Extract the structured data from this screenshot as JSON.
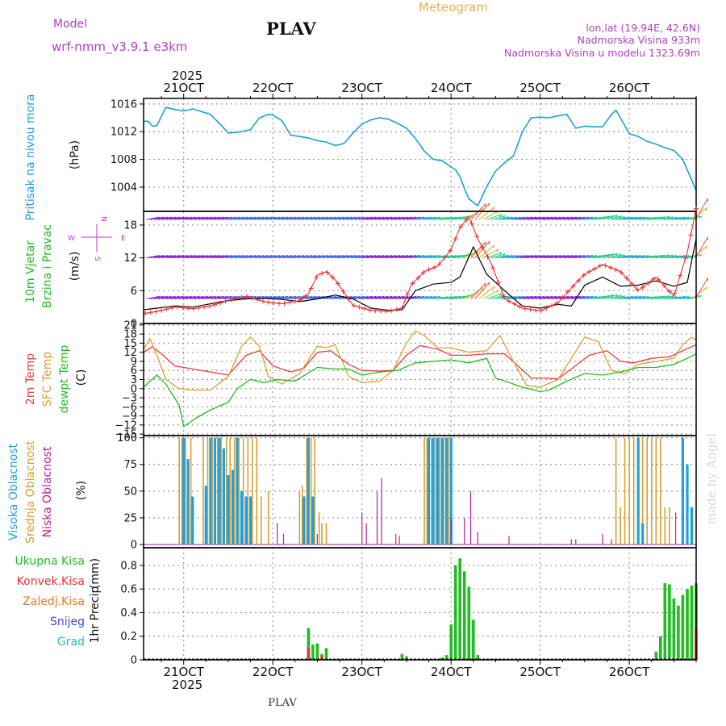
{
  "header": {
    "model_label": "Model",
    "model_name": "wrf-nmm_v3.9.1 e3km",
    "location": "PLAV",
    "product": "Meteogram",
    "lonlat": "lon,lat (19.94E, 42.6N)",
    "elevation": "Nadmorska Visina 933m",
    "model_elevation": "Nadmorska Visina u modelu 1323.69m",
    "footer_location": "PLAV",
    "watermark": "made by Angel",
    "year_top": "2025",
    "year_bottom": "2025"
  },
  "colors": {
    "pressure": "#1a9fe0",
    "wind_speed": "#000000",
    "wind_gust": "#ee3030",
    "temp2m": "#ee3b3b",
    "sfc_temp": "#d8a030",
    "dewpoint": "#22bb22",
    "cloud_high": "#1f9fe0",
    "cloud_mid": "#d8a030",
    "cloud_low": "#bb2299",
    "precip_total": "#22bb22",
    "precip_conv": "#ee3030",
    "precip_frozen": "#ee7722",
    "snow": "#4444dd",
    "graupel": "#22bbbb",
    "grid": "#999999",
    "violet": "#b040c0",
    "ylabel_pressure": "#1aa0e0"
  },
  "chart_data": [
    {
      "type": "line",
      "id": "pressure",
      "title": "Pritisak na nivou mora",
      "ylabel": "(hPa)",
      "ylim": [
        1000.5,
        1016.8
      ],
      "yticks": [
        1004,
        1008,
        1012,
        1016
      ],
      "xlim": [
        20.55,
        26.75
      ],
      "x_ticks": [
        21,
        22,
        23,
        24,
        25,
        26
      ],
      "x_tick_labels": [
        "21OCT",
        "22OCT",
        "23OCT",
        "24OCT",
        "25OCT",
        "26OCT"
      ],
      "series": [
        {
          "name": "MSLP",
          "x": [
            20.55,
            20.6,
            20.65,
            20.7,
            20.8,
            20.9,
            21.0,
            21.1,
            21.2,
            21.3,
            21.4,
            21.5,
            21.6,
            21.75,
            21.85,
            21.95,
            22.0,
            22.1,
            22.2,
            22.3,
            22.4,
            22.5,
            22.6,
            22.7,
            22.8,
            22.9,
            23.0,
            23.1,
            23.2,
            23.3,
            23.4,
            23.5,
            23.6,
            23.7,
            23.8,
            23.9,
            24.0,
            24.05,
            24.1,
            24.15,
            24.2,
            24.3,
            24.4,
            24.5,
            24.6,
            24.7,
            24.8,
            24.9,
            25.0,
            25.1,
            25.2,
            25.3,
            25.4,
            25.5,
            25.6,
            25.7,
            25.8,
            25.85,
            25.9,
            26.0,
            26.1,
            26.2,
            26.3,
            26.4,
            26.5,
            26.6,
            26.7,
            26.75
          ],
          "values": [
            1013.5,
            1013.5,
            1012.8,
            1012.9,
            1015.5,
            1015.2,
            1015.0,
            1015.3,
            1014.9,
            1014.5,
            1013.2,
            1011.8,
            1011.9,
            1012.3,
            1014.0,
            1014.5,
            1014.4,
            1013.6,
            1011.5,
            1011.3,
            1011.1,
            1010.7,
            1010.5,
            1010.0,
            1010.3,
            1011.8,
            1013.1,
            1013.7,
            1014.0,
            1013.8,
            1013.2,
            1012.5,
            1011.0,
            1009.2,
            1008.0,
            1007.8,
            1006.9,
            1006.5,
            1005.5,
            1003.8,
            1002.3,
            1001.3,
            1004.1,
            1006.3,
            1007.5,
            1008.5,
            1012.0,
            1014.0,
            1014.1,
            1014.0,
            1014.3,
            1014.5,
            1012.5,
            1012.8,
            1012.7,
            1012.7,
            1014.5,
            1015.1,
            1014.0,
            1011.7,
            1011.3,
            1010.6,
            1010.2,
            1009.7,
            1009.3,
            1008.0,
            1005.0,
            1003.5
          ]
        }
      ]
    },
    {
      "type": "line",
      "id": "wind",
      "title": "10m Vjetar",
      "subtitle": "Brzina i Pravac",
      "ylabel": "(m/s)",
      "compass": [
        "N",
        "W",
        "E",
        "S"
      ],
      "ylim": [
        0,
        20.5
      ],
      "yticks": [
        0,
        6,
        12,
        18
      ],
      "xlim": [
        20.55,
        26.75
      ],
      "arrow_rows": [
        4.5,
        12,
        19
      ],
      "series": [
        {
          "name": "wind speed",
          "x": [
            20.55,
            20.7,
            20.9,
            21.1,
            21.3,
            21.5,
            21.7,
            21.9,
            22.1,
            22.3,
            22.5,
            22.7,
            22.9,
            23.1,
            23.3,
            23.45,
            23.6,
            23.8,
            24.0,
            24.1,
            24.25,
            24.4,
            24.6,
            24.8,
            25.0,
            25.2,
            25.35,
            25.5,
            25.7,
            25.9,
            26.1,
            26.3,
            26.5,
            26.65,
            26.75
          ],
          "values": [
            2.5,
            2.8,
            3.2,
            3.0,
            3.6,
            4.2,
            4.5,
            4.6,
            4.4,
            4.0,
            4.5,
            5.2,
            4.5,
            2.8,
            2.4,
            2.5,
            6.0,
            7.2,
            7.5,
            8.5,
            14.0,
            9.0,
            6.0,
            3.2,
            2.8,
            3.5,
            3.2,
            7.0,
            8.5,
            6.8,
            7.0,
            7.8,
            6.8,
            7.5,
            15.5
          ]
        },
        {
          "name": "wind gust",
          "x": [
            20.55,
            20.7,
            20.9,
            21.1,
            21.3,
            21.5,
            21.7,
            21.9,
            22.1,
            22.3,
            22.4,
            22.5,
            22.6,
            22.7,
            22.9,
            23.1,
            23.3,
            23.45,
            23.55,
            23.7,
            23.85,
            24.0,
            24.1,
            24.2,
            24.3,
            24.45,
            24.6,
            24.8,
            25.0,
            25.2,
            25.35,
            25.5,
            25.7,
            25.9,
            26.1,
            26.3,
            26.5,
            26.65,
            26.75
          ],
          "values": [
            1.8,
            2.2,
            3.0,
            2.7,
            3.2,
            4.2,
            5.0,
            4.0,
            3.6,
            4.2,
            5.4,
            8.8,
            9.5,
            8.0,
            3.3,
            2.4,
            2.2,
            2.8,
            7.0,
            9.5,
            10.5,
            13.5,
            17.5,
            19.5,
            15.5,
            11.0,
            4.5,
            2.8,
            2.3,
            3.8,
            6.5,
            9.0,
            10.8,
            9.5,
            6.0,
            8.5,
            5.0,
            13.0,
            21.0
          ]
        }
      ]
    },
    {
      "type": "line",
      "id": "temperature",
      "title": "2m Temp",
      "subtitle": "SFC Temp",
      "subtitle2": "dewpt Temp",
      "ylabel": "(C)",
      "ylim": [
        -15.5,
        21.5
      ],
      "yticks": [
        -15,
        -12,
        -9,
        -6,
        -3,
        0,
        3,
        6,
        9,
        12,
        15,
        18,
        21
      ],
      "xlim": [
        20.55,
        26.75
      ],
      "series": [
        {
          "name": "2m Temp",
          "x": [
            20.55,
            20.65,
            20.75,
            20.9,
            21.1,
            21.3,
            21.5,
            21.7,
            21.85,
            22.0,
            22.2,
            22.35,
            22.5,
            22.65,
            22.85,
            23.0,
            23.2,
            23.35,
            23.5,
            23.65,
            23.85,
            24.0,
            24.2,
            24.4,
            24.6,
            24.75,
            24.9,
            25.05,
            25.2,
            25.35,
            25.55,
            25.75,
            25.9,
            26.05,
            26.25,
            26.45,
            26.6,
            26.75
          ],
          "values": [
            12.0,
            13.8,
            11.5,
            7.5,
            6.5,
            5.5,
            4.5,
            11.0,
            12.5,
            7.5,
            5.5,
            6.8,
            12.0,
            12.5,
            8.0,
            6.0,
            5.8,
            6.0,
            11.0,
            14.2,
            13.0,
            11.0,
            11.0,
            11.5,
            11.5,
            7.5,
            3.5,
            3.5,
            3.2,
            6.5,
            11.0,
            12.5,
            9.0,
            8.5,
            10.0,
            10.5,
            12.5,
            14.5
          ]
        },
        {
          "name": "SFC Temp",
          "x": [
            20.55,
            20.62,
            20.7,
            20.8,
            20.95,
            21.1,
            21.3,
            21.5,
            21.65,
            21.75,
            21.85,
            21.95,
            22.1,
            22.3,
            22.5,
            22.6,
            22.7,
            22.85,
            23.0,
            23.2,
            23.35,
            23.5,
            23.6,
            23.7,
            23.85,
            24.0,
            24.2,
            24.4,
            24.55,
            24.7,
            24.85,
            25.0,
            25.2,
            25.35,
            25.5,
            25.65,
            25.8,
            25.95,
            26.1,
            26.3,
            26.5,
            26.6,
            26.7,
            26.75
          ],
          "values": [
            13.0,
            16.5,
            11.0,
            3.0,
            0.0,
            -0.5,
            -0.5,
            4.0,
            14.0,
            17.0,
            14.0,
            4.0,
            1.5,
            5.0,
            14.0,
            13.5,
            14.5,
            4.0,
            2.0,
            2.5,
            6.0,
            15.0,
            19.0,
            17.5,
            13.5,
            13.5,
            12.0,
            12.5,
            17.5,
            9.0,
            1.0,
            0.5,
            3.0,
            10.0,
            17.0,
            15.5,
            6.0,
            5.0,
            8.0,
            9.0,
            10.0,
            14.5,
            17.0,
            16.0
          ]
        },
        {
          "name": "dewpt Temp",
          "x": [
            20.55,
            20.7,
            20.8,
            20.95,
            21.0,
            21.15,
            21.3,
            21.5,
            21.6,
            21.75,
            21.9,
            22.05,
            22.25,
            22.5,
            22.7,
            22.85,
            23.0,
            23.2,
            23.4,
            23.6,
            23.8,
            24.0,
            24.2,
            24.4,
            24.5,
            24.65,
            24.8,
            25.0,
            25.1,
            25.3,
            25.5,
            25.7,
            25.9,
            26.1,
            26.3,
            26.5,
            26.65,
            26.75
          ],
          "values": [
            0.5,
            4.5,
            1.5,
            -5.5,
            -12.5,
            -9.5,
            -7.0,
            -4.5,
            0.0,
            3.0,
            2.0,
            3.0,
            2.5,
            7.0,
            6.5,
            6.5,
            4.5,
            5.5,
            6.0,
            8.5,
            9.0,
            9.5,
            8.5,
            10.0,
            3.5,
            2.0,
            0.5,
            -1.0,
            -0.5,
            2.5,
            5.0,
            4.5,
            5.5,
            7.0,
            7.0,
            8.0,
            10.0,
            11.5
          ]
        }
      ]
    },
    {
      "type": "bar",
      "id": "clouds",
      "title": "Visoka Oblacnost",
      "subtitle": "Srednja Oblacnost",
      "subtitle2": "Niska Oblacnost",
      "ylabel": "(%)",
      "ylim": [
        -3,
        102
      ],
      "yticks": [
        0,
        25,
        50,
        75,
        100
      ],
      "xlim": [
        20.55,
        26.75
      ],
      "series": [
        {
          "name": "Visoka Oblacnost",
          "x": [
            21.0,
            21.05,
            21.1,
            21.25,
            21.3,
            21.35,
            21.4,
            21.45,
            21.5,
            21.55,
            21.6,
            21.65,
            21.7,
            21.75,
            22.35,
            22.4,
            22.45,
            23.75,
            23.8,
            23.85,
            23.9,
            23.95,
            24.0,
            26.1,
            26.15,
            26.6,
            26.65,
            26.7
          ],
          "values": [
            100,
            80,
            45,
            55,
            100,
            100,
            100,
            90,
            65,
            70,
            100,
            50,
            45,
            45,
            45,
            100,
            45,
            100,
            100,
            100,
            100,
            100,
            100,
            100,
            20,
            100,
            75,
            35
          ]
        },
        {
          "name": "Srednja Oblacnost",
          "x": [
            20.95,
            20.98,
            21.02,
            21.08,
            21.22,
            21.27,
            21.32,
            21.38,
            21.42,
            21.48,
            21.52,
            21.57,
            21.62,
            21.67,
            21.72,
            21.77,
            21.82,
            21.87,
            21.95,
            22.3,
            22.33,
            22.38,
            22.43,
            22.47,
            22.52,
            22.55,
            22.6,
            23.7,
            23.73,
            23.78,
            23.83,
            23.87,
            23.92,
            23.97,
            24.0,
            25.85,
            25.9,
            25.95,
            26.0,
            26.05,
            26.1,
            26.15,
            26.2,
            26.25,
            26.3,
            26.35,
            26.4,
            26.45
          ],
          "values": [
            100,
            100,
            100,
            100,
            100,
            100,
            100,
            100,
            100,
            100,
            100,
            100,
            100,
            100,
            100,
            100,
            100,
            45,
            50,
            50,
            55,
            100,
            100,
            100,
            30,
            20,
            20,
            100,
            100,
            100,
            100,
            100,
            100,
            100,
            100,
            100,
            35,
            100,
            100,
            100,
            100,
            100,
            100,
            100,
            100,
            100,
            35,
            35
          ]
        },
        {
          "name": "Niska Oblacnost",
          "x": [
            22.05,
            22.12,
            22.5,
            23.0,
            23.05,
            23.17,
            23.22,
            23.38,
            23.42,
            24.0,
            24.15,
            24.22,
            24.3,
            24.65,
            25.35,
            25.4,
            25.7,
            25.8,
            26.52
          ],
          "values": [
            20,
            10,
            10,
            30,
            20,
            50,
            62,
            10,
            8,
            25,
            25,
            50,
            12,
            8,
            5,
            5,
            10,
            5,
            30
          ]
        }
      ]
    },
    {
      "type": "bar",
      "id": "precip",
      "title": "1hr Precip",
      "ylabel": "(mm)",
      "legend": [
        "Ukupna Kisa",
        "Konvek.Kisa",
        "Zaledj.Kisa",
        "Snijeg",
        "Grad"
      ],
      "ylim": [
        0,
        0.95
      ],
      "yticks": [
        0,
        0.2,
        0.4,
        0.6,
        0.8
      ],
      "xlim": [
        20.55,
        26.75
      ],
      "series": [
        {
          "name": "Ukupna Kisa",
          "x": [
            22.4,
            22.45,
            22.5,
            22.55,
            22.6,
            23.45,
            23.5,
            23.9,
            23.95,
            24.0,
            24.05,
            24.1,
            24.15,
            24.2,
            24.25,
            24.3,
            26.3,
            26.35,
            26.4,
            26.45,
            26.5,
            26.55,
            26.6,
            26.65,
            26.7,
            26.75
          ],
          "values": [
            0.27,
            0.13,
            0.14,
            0.05,
            0.1,
            0.05,
            0.03,
            0.02,
            0.04,
            0.3,
            0.8,
            0.86,
            0.75,
            0.62,
            0.34,
            0.04,
            0.07,
            0.2,
            0.65,
            0.64,
            0.52,
            0.46,
            0.55,
            0.6,
            0.63,
            0.65
          ]
        },
        {
          "name": "Konvek.Kisa",
          "x": [
            22.4,
            22.55,
            26.75
          ],
          "values": [
            0.1,
            0.03,
            0.26
          ]
        }
      ]
    }
  ]
}
